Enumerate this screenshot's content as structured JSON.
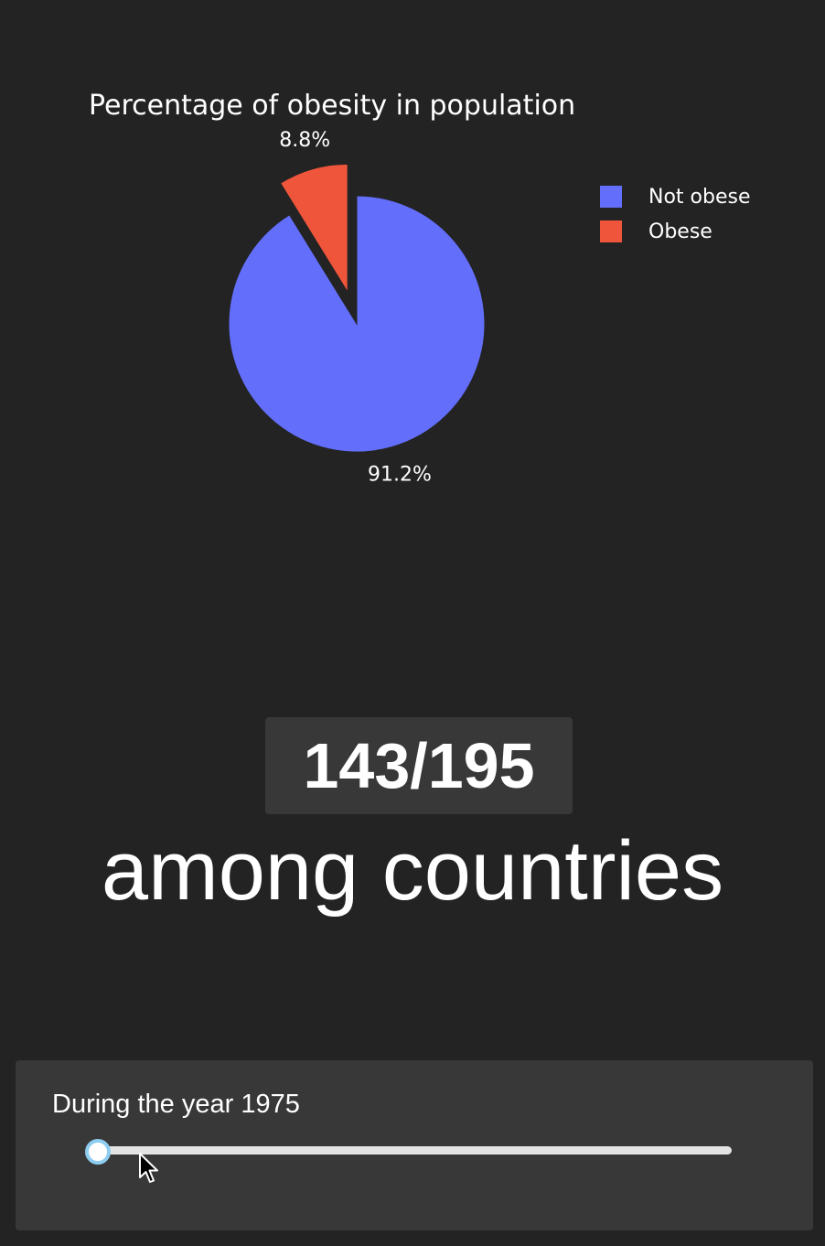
{
  "chart_data": {
    "type": "pie",
    "title": "Percentage of obesity in population",
    "slices": [
      {
        "label": "Not obese",
        "value": 91.2,
        "text": "91.2%",
        "color": "#636efa",
        "pulled": false
      },
      {
        "label": "Obese",
        "value": 8.8,
        "text": "8.8%",
        "color": "#ef553b",
        "pulled": true
      }
    ],
    "legend": {
      "placement": "top-right"
    }
  },
  "rank": {
    "value": "143/195",
    "caption": "among countries"
  },
  "slider": {
    "label": "During the year 1975",
    "value_fraction": 0
  },
  "colors": {
    "background": "#232323",
    "panel": "#383838",
    "slider_track": "#e4e4e4",
    "slider_handle_border": "#8fcdf0"
  }
}
